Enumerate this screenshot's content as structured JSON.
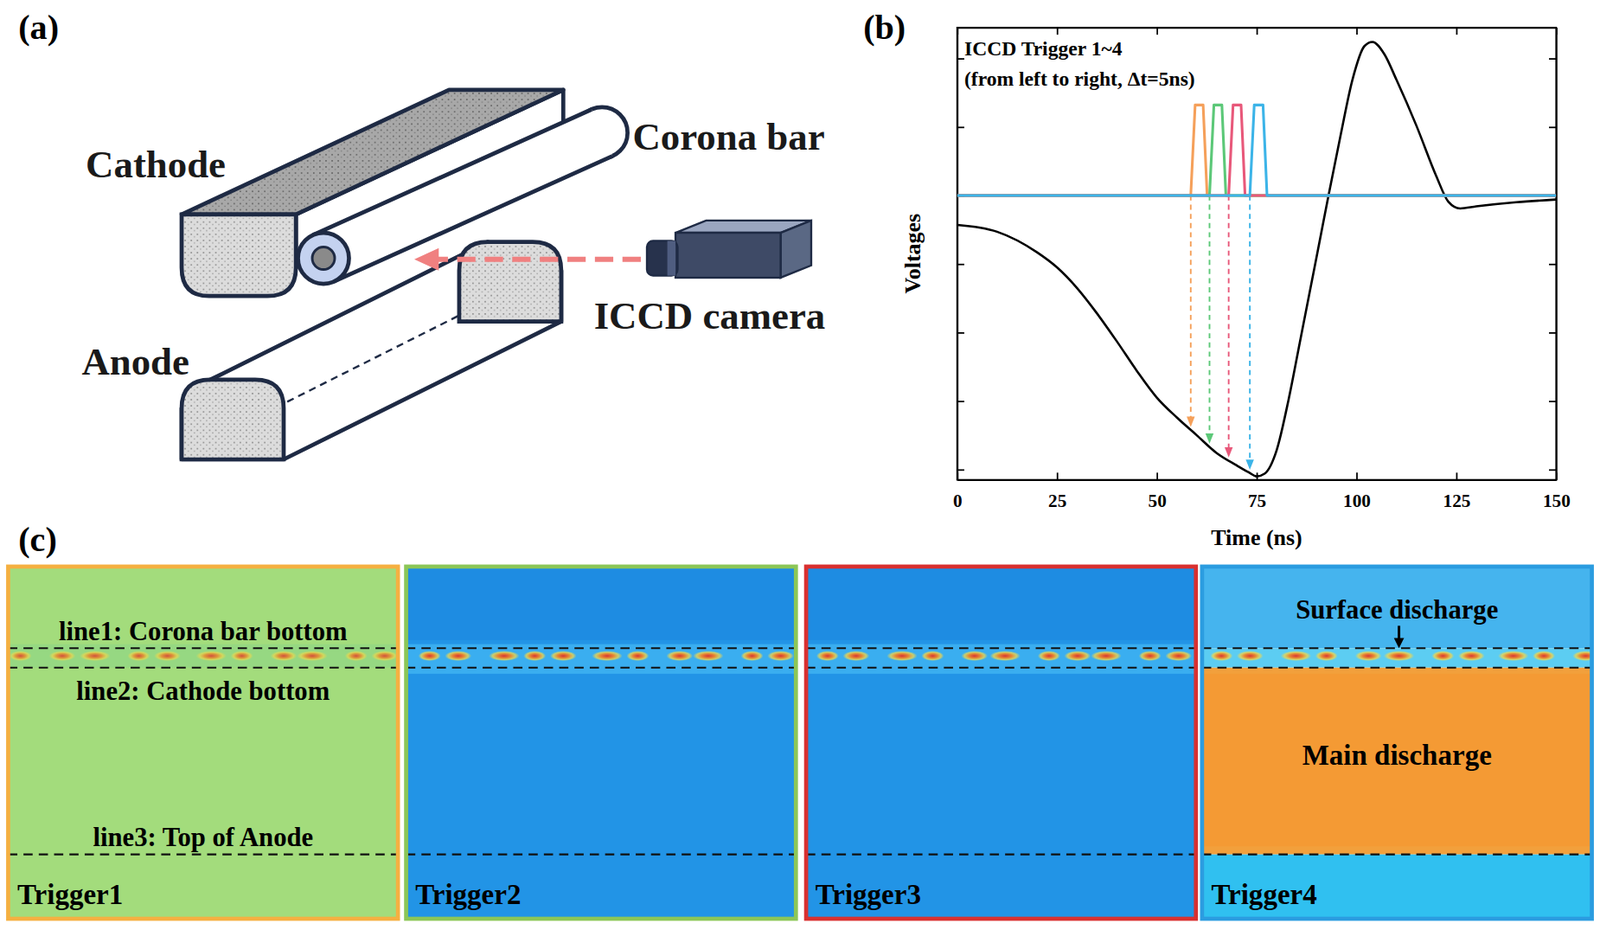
{
  "panel_labels": [
    "(a)",
    "(b)",
    "(c)"
  ],
  "diagram": {
    "labels": [
      "Cathode",
      "Corona bar",
      "Anode",
      "ICCD camera"
    ]
  },
  "chart_data": {
    "type": "line",
    "x_label": "Time (ns)",
    "y_label": "Voltages",
    "annotations": [
      "ICCD Trigger 1~4",
      "(from left to right, Δt=5ns)"
    ],
    "xlim": [
      0,
      150
    ],
    "xticks": [
      0,
      25,
      50,
      75,
      100,
      125,
      150
    ],
    "ylim": [
      -4.15,
      2.45
    ],
    "yticks": [
      -4,
      -3,
      -2,
      -1,
      0,
      1,
      2
    ],
    "tick_labels": "x",
    "series": [
      {
        "color": "#000000",
        "x": [
          0,
          10,
          20,
          25,
          30,
          35,
          40,
          45,
          50,
          55,
          60,
          65,
          70,
          73,
          75,
          77,
          80,
          83,
          86,
          90,
          93,
          96,
          99,
          102,
          104,
          107,
          110,
          115,
          120,
          123,
          126,
          130,
          140,
          150
        ],
        "values": [
          -0.43,
          -0.53,
          -0.83,
          -1.05,
          -1.35,
          -1.72,
          -2.13,
          -2.56,
          -2.95,
          -3.24,
          -3.5,
          -3.76,
          -3.94,
          -4.04,
          -4.1,
          -4.06,
          -3.72,
          -2.98,
          -2.09,
          -0.9,
          0.0,
          0.87,
          1.69,
          2.18,
          2.24,
          2.06,
          1.69,
          1.02,
          0.28,
          -0.09,
          -0.19,
          -0.16,
          -0.1,
          -0.06
        ]
      },
      {
        "color": "#f5a05a",
        "x": [
          0,
          58.5,
          59.6,
          61.6,
          62.6,
          150
        ],
        "values": [
          0,
          0,
          1.32,
          1.32,
          0,
          0
        ]
      },
      {
        "color": "#5cc878",
        "x": [
          0,
          63.2,
          64.3,
          66.3,
          67.3,
          150
        ],
        "values": [
          0,
          0,
          1.32,
          1.32,
          0,
          0
        ]
      },
      {
        "color": "#e8587a",
        "x": [
          0,
          68.0,
          69.1,
          71.1,
          72.1,
          150
        ],
        "values": [
          0,
          0,
          1.32,
          1.32,
          0,
          0
        ]
      },
      {
        "color": "#3cb4e8",
        "x": [
          0,
          73.3,
          74.4,
          76.6,
          77.6,
          150
        ],
        "values": [
          0,
          0,
          1.32,
          1.32,
          0,
          0
        ]
      }
    ]
  },
  "images": {
    "frames": [
      {
        "label": "Trigger1",
        "color": "#f5b041"
      },
      {
        "label": "Trigger2",
        "color": "#8cc657"
      },
      {
        "label": "Trigger3",
        "color": "#d93030"
      },
      {
        "label": "Trigger4",
        "color": "#2b9ce0"
      }
    ],
    "line_labels": [
      "line1: Corona bar bottom",
      "line2: Cathode bottom",
      "line3: Top of Anode"
    ],
    "annotations": [
      "Surface discharge",
      "Main discharge"
    ]
  }
}
